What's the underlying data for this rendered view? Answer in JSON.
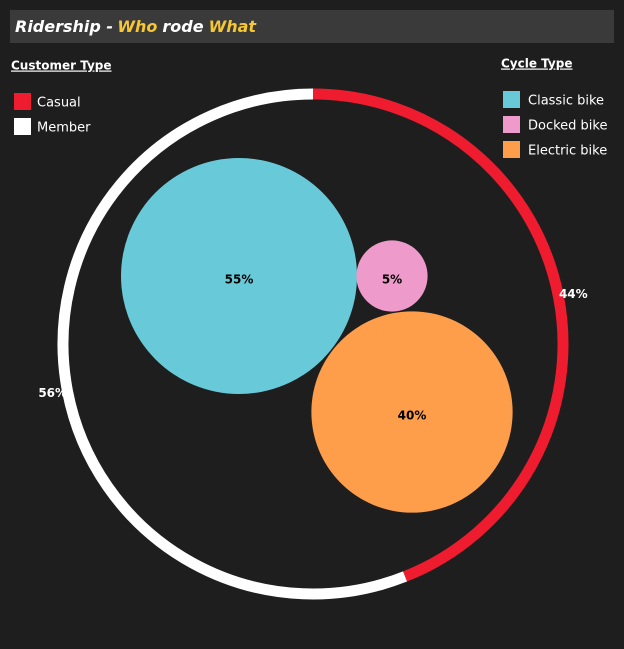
{
  "header": {
    "title_parts": [
      "Ridership -",
      "Who",
      "rode",
      "What"
    ]
  },
  "chart_data": [
    {
      "type": "donut",
      "legend_title": "Customer Type",
      "categories": [
        "Casual",
        "Member"
      ],
      "values": [
        44,
        56
      ],
      "value_labels": [
        "44%",
        "56%"
      ],
      "colors": [
        "#ee1c2e",
        "#ffffff"
      ]
    },
    {
      "type": "bubble",
      "legend_title": "Cycle Type",
      "categories": [
        "Classic bike",
        "Docked bike",
        "Electric bike"
      ],
      "values": [
        55,
        5,
        40
      ],
      "value_labels": [
        "55%",
        "5%",
        "40%"
      ],
      "colors": [
        "#68cad8",
        "#ee9acb",
        "#ff9e4a"
      ]
    }
  ]
}
